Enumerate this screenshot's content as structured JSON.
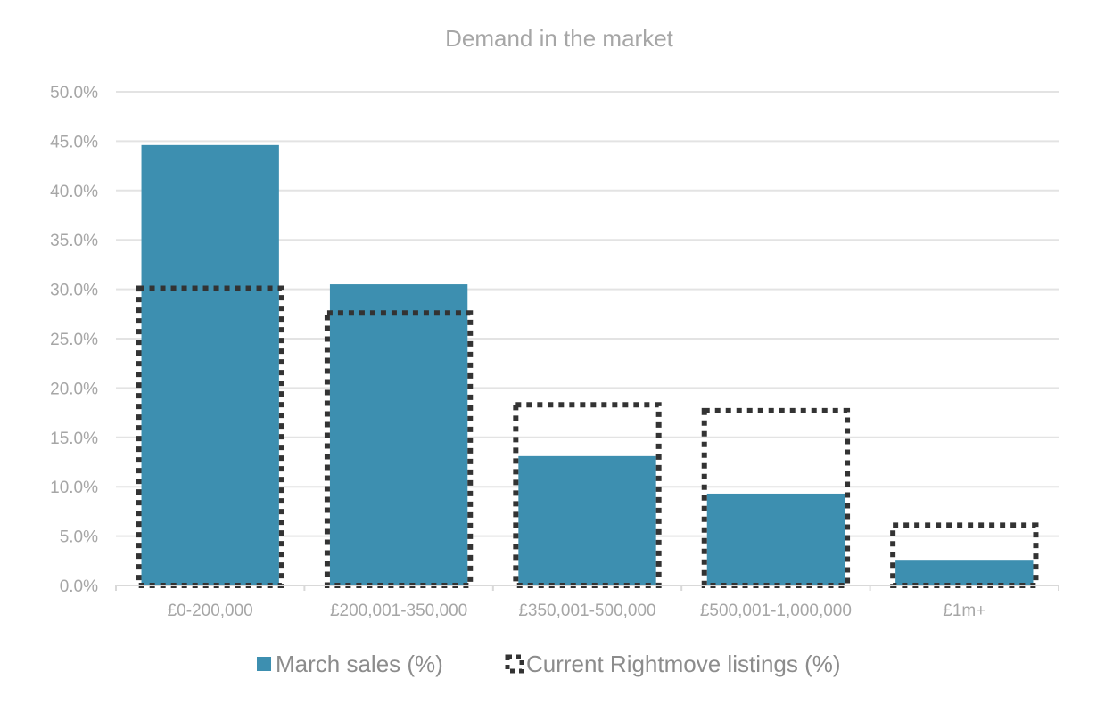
{
  "chart_data": {
    "type": "bar",
    "title": "Demand in the market",
    "categories": [
      "£0-200,000",
      "£200,001-350,000",
      "£350,001-500,000",
      "£500,001-1,000,000",
      "£1m+"
    ],
    "series": [
      {
        "name": "March sales (%)",
        "values": [
          44.6,
          30.5,
          13.1,
          9.3,
          2.6
        ],
        "style": "filled",
        "color": "#3d8fb0"
      },
      {
        "name": "Current Rightmove listings (%)",
        "values": [
          30.1,
          27.6,
          18.3,
          17.7,
          6.1
        ],
        "style": "dotted-outline",
        "color": "#333333"
      }
    ],
    "ylim": [
      0,
      50
    ],
    "yticks": [
      "0.0%",
      "5.0%",
      "10.0%",
      "15.0%",
      "20.0%",
      "25.0%",
      "30.0%",
      "35.0%",
      "40.0%",
      "45.0%",
      "50.0%"
    ],
    "grid": true,
    "legend_position": "bottom",
    "colors": {
      "grid": "#e3e3e3",
      "axis_text": "#a6a6a6",
      "title_text": "#a6a6a6",
      "legend_text": "#8c8c8c"
    }
  }
}
